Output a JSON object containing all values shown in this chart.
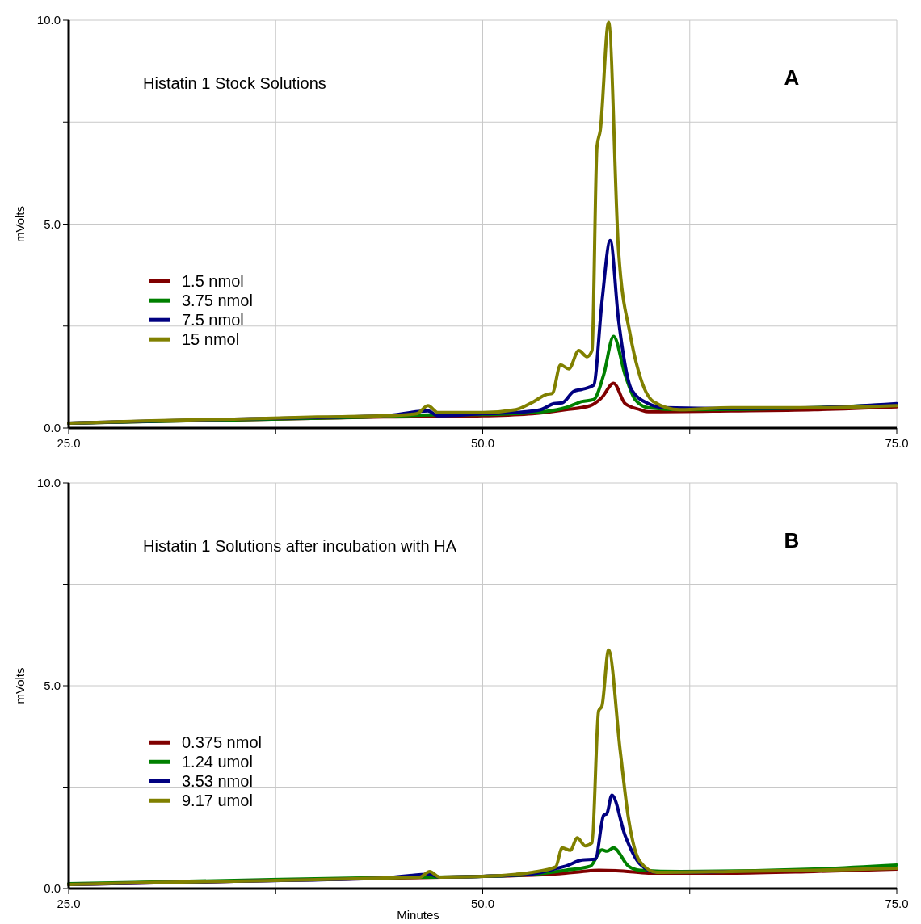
{
  "chart_data": [
    {
      "type": "line",
      "title": "Histatin 1 Stock Solutions",
      "ylabel": "mVolts",
      "annotations": [
        "A"
      ],
      "xlim": [
        25,
        75
      ],
      "ylim": [
        0,
        10
      ],
      "xticks": [
        {
          "value": 25,
          "label": "25.0"
        },
        {
          "value": 37.5,
          "label": null
        },
        {
          "value": 50,
          "label": "50.0"
        },
        {
          "value": 62.5,
          "label": null
        },
        {
          "value": 75,
          "label": "75.0"
        }
      ],
      "yticks": [
        {
          "value": 0,
          "label": "0.0"
        },
        {
          "value": 2.5,
          "label": null
        },
        {
          "value": 5,
          "label": "5.0"
        },
        {
          "value": 7.5,
          "label": null
        },
        {
          "value": 10,
          "label": "10.0"
        }
      ],
      "grid": true,
      "legend": "left",
      "marker": "none",
      "line_style": "solid",
      "series": [
        {
          "name": "1.5 nmol",
          "color": "#800000",
          "x": [
            25,
            35,
            44,
            50,
            53,
            55,
            56.5,
            57.2,
            57.9,
            58.6,
            59.5,
            60,
            65,
            70,
            75
          ],
          "values": [
            0.12,
            0.2,
            0.27,
            0.3,
            0.35,
            0.45,
            0.55,
            0.75,
            1.1,
            0.6,
            0.45,
            0.4,
            0.42,
            0.45,
            0.52
          ]
        },
        {
          "name": "3.75 nmol",
          "color": "#008000",
          "x": [
            25,
            35,
            44,
            46.7,
            50,
            53,
            54.5,
            55,
            56,
            56.7,
            57.3,
            57.9,
            58.6,
            59.2,
            60,
            62,
            70,
            75
          ],
          "values": [
            0.12,
            0.2,
            0.28,
            0.32,
            0.33,
            0.38,
            0.45,
            0.5,
            0.65,
            0.7,
            1.3,
            2.25,
            1.3,
            0.7,
            0.5,
            0.45,
            0.5,
            0.58
          ]
        },
        {
          "name": "7.5 nmol",
          "color": "#000080",
          "x": [
            25,
            35,
            44,
            46.7,
            47.3,
            50,
            52,
            53.5,
            54.3,
            54.8,
            55.5,
            56,
            56.7,
            57.2,
            57.7,
            58.2,
            59,
            60,
            61,
            65,
            70,
            75
          ],
          "values": [
            0.12,
            0.22,
            0.3,
            0.42,
            0.3,
            0.35,
            0.38,
            0.45,
            0.6,
            0.62,
            0.9,
            0.95,
            1.05,
            3.1,
            4.6,
            2.65,
            0.93,
            0.6,
            0.5,
            0.48,
            0.5,
            0.6
          ]
        },
        {
          "name": "15 nmol",
          "color": "#808000",
          "x": [
            25,
            30,
            35,
            40,
            44,
            46,
            46.7,
            47.3,
            50,
            52,
            53,
            53.9,
            54.2,
            54.7,
            55.2,
            55.8,
            56.3,
            56.6,
            56.9,
            57.1,
            57.6,
            58.2,
            58.9,
            59.4,
            60.3,
            61.9,
            65,
            70,
            75
          ],
          "values": [
            0.12,
            0.18,
            0.22,
            0.27,
            0.3,
            0.35,
            0.55,
            0.38,
            0.38,
            0.45,
            0.63,
            0.83,
            0.85,
            1.55,
            1.45,
            1.9,
            1.75,
            1.9,
            6.9,
            7.3,
            9.95,
            4.35,
            2.3,
            1.4,
            0.65,
            0.45,
            0.5,
            0.5,
            0.55
          ]
        }
      ]
    },
    {
      "type": "line",
      "title": "Histatin 1 Solutions after incubation with HA",
      "xlabel": "Minutes",
      "ylabel": "mVolts",
      "annotations": [
        "B"
      ],
      "xlim": [
        25,
        75
      ],
      "ylim": [
        0,
        10
      ],
      "xticks": [
        {
          "value": 25,
          "label": "25.0"
        },
        {
          "value": 37.5,
          "label": null
        },
        {
          "value": 50,
          "label": "50.0"
        },
        {
          "value": 62.5,
          "label": null
        },
        {
          "value": 75,
          "label": "75.0"
        }
      ],
      "yticks": [
        {
          "value": 0,
          "label": "0.0"
        },
        {
          "value": 2.5,
          "label": null
        },
        {
          "value": 5,
          "label": "5.0"
        },
        {
          "value": 7.5,
          "label": null
        },
        {
          "value": 10,
          "label": "10.0"
        }
      ],
      "grid": true,
      "legend": "left",
      "marker": "none",
      "line_style": "solid",
      "series": [
        {
          "name": "0.375 nmol",
          "color": "#800000",
          "x": [
            25,
            35,
            44,
            50,
            53,
            55,
            56,
            57,
            58.5,
            60,
            65,
            70,
            75
          ],
          "values": [
            0.1,
            0.18,
            0.25,
            0.3,
            0.33,
            0.38,
            0.42,
            0.45,
            0.43,
            0.38,
            0.38,
            0.42,
            0.48
          ]
        },
        {
          "name": "1.24 umol",
          "color": "#008000",
          "x": [
            25,
            35,
            44,
            50,
            53,
            55,
            56.5,
            57.2,
            57.5,
            57.9,
            58.8,
            59.5,
            62,
            70,
            75
          ],
          "values": [
            0.12,
            0.2,
            0.27,
            0.3,
            0.35,
            0.45,
            0.55,
            0.95,
            0.92,
            1.0,
            0.55,
            0.45,
            0.42,
            0.48,
            0.58
          ]
        },
        {
          "name": "3.53 nmol",
          "color": "#000080",
          "x": [
            25,
            35,
            44,
            46.8,
            47.4,
            50,
            53,
            54.5,
            55,
            56,
            56.8,
            57.3,
            57.5,
            57.8,
            58.6,
            59.5,
            60.5,
            65
          ],
          "values": [
            0.1,
            0.18,
            0.26,
            0.35,
            0.28,
            0.3,
            0.36,
            0.5,
            0.55,
            0.7,
            0.72,
            1.8,
            1.85,
            2.3,
            1.3,
            0.6,
            0.4,
            0.42
          ]
        },
        {
          "name": "9.17 umol",
          "color": "#808000",
          "x": [
            25,
            30,
            35,
            40,
            44,
            46.2,
            46.8,
            47.4,
            50,
            52,
            53,
            54.4,
            54.8,
            55.3,
            55.7,
            56.2,
            56.6,
            57,
            57.2,
            57.6,
            58.3,
            58.8,
            59.5,
            60.5,
            65,
            70,
            75
          ],
          "values": [
            0.1,
            0.15,
            0.18,
            0.22,
            0.26,
            0.28,
            0.42,
            0.28,
            0.3,
            0.35,
            0.4,
            0.53,
            1.0,
            0.94,
            1.25,
            1.05,
            1.13,
            4.38,
            4.5,
            5.88,
            3.4,
            1.73,
            0.66,
            0.4,
            0.42,
            0.45,
            0.5
          ]
        }
      ]
    }
  ]
}
